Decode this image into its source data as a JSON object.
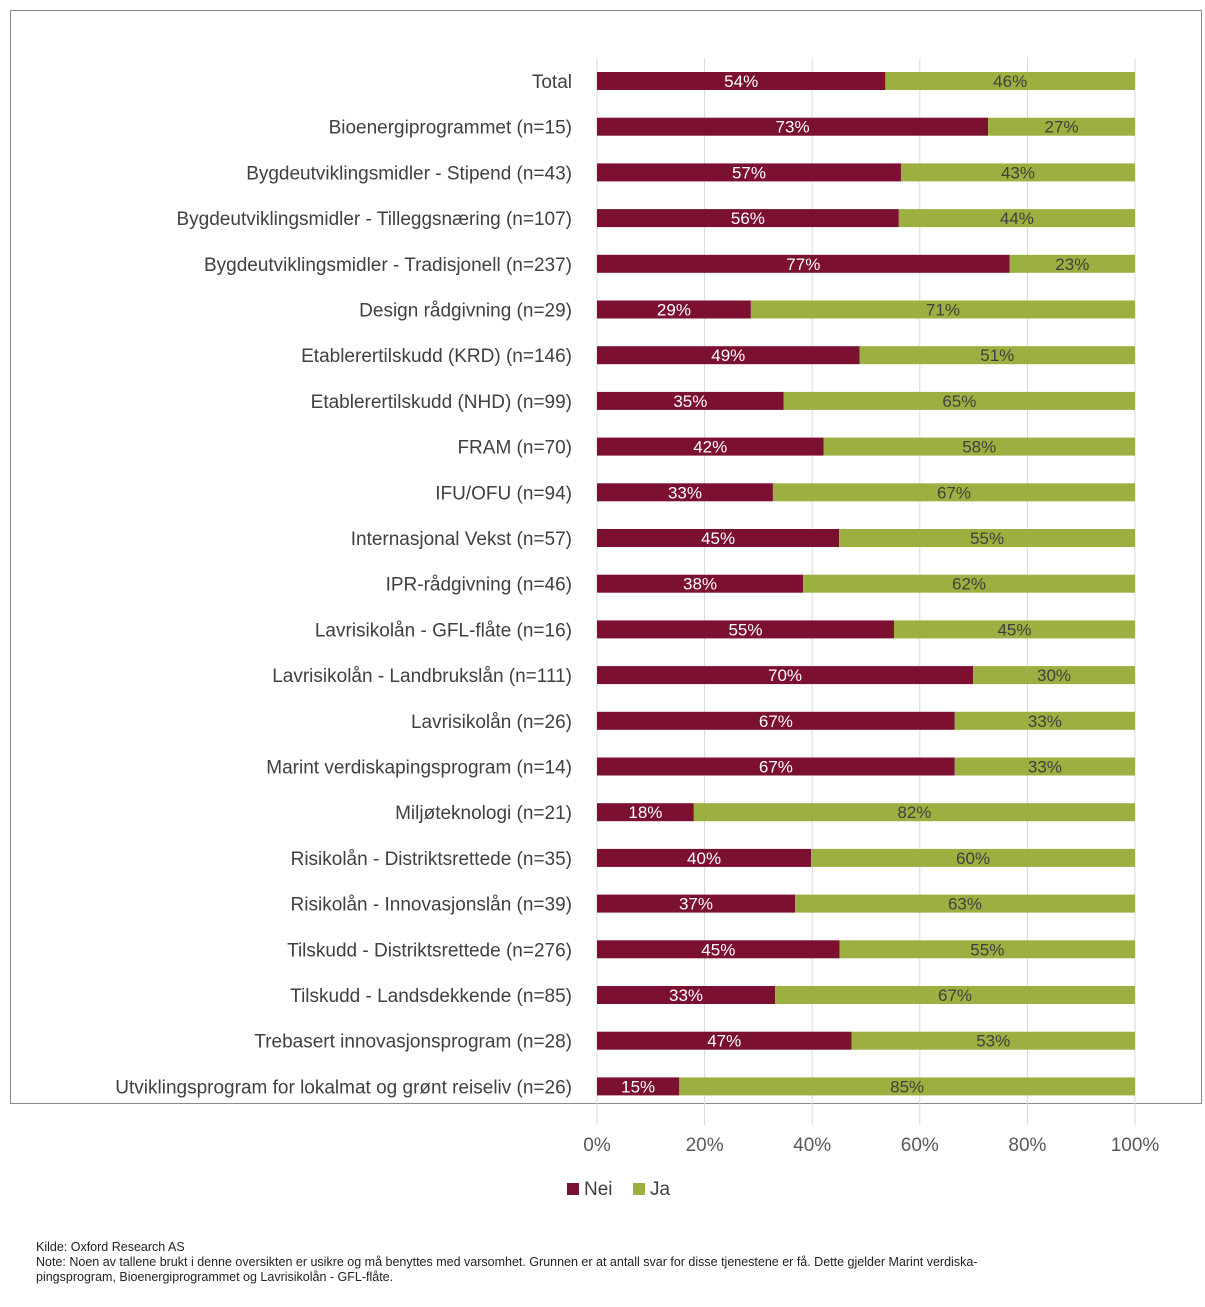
{
  "chart_data": {
    "type": "bar",
    "orientation": "horizontal",
    "stacked": "100%",
    "categories": [
      "Total",
      "Bioenergiprogrammet (n=15)",
      "Bygdeutviklingsmidler - Stipend (n=43)",
      "Bygdeutviklingsmidler - Tilleggsnæring (n=107)",
      "Bygdeutviklingsmidler - Tradisjonell (n=237)",
      "Design rådgivning (n=29)",
      "Etablerertilskudd (KRD) (n=146)",
      "Etablerertilskudd (NHD) (n=99)",
      "FRAM (n=70)",
      "IFU/OFU (n=94)",
      "Internasjonal Vekst (n=57)",
      "IPR-rådgivning (n=46)",
      "Lavrisikolån - GFL-flåte (n=16)",
      "Lavrisikolån - Landbrukslån (n=111)",
      "Lavrisikolån (n=26)",
      "Marint verdiskapingsprogram (n=14)",
      "Miljøteknologi (n=21)",
      "Risikolån - Distriktsrettede (n=35)",
      "Risikolån - Innovasjonslån (n=39)",
      "Tilskudd - Distriktsrettede (n=276)",
      "Tilskudd - Landsdekkende (n=85)",
      "Trebasert innovasjonsprogram (n=28)",
      "Utviklingsprogram for lokalmat og grønt reiseliv (n=26)"
    ],
    "series": [
      {
        "name": "Nei",
        "color": "#7b1030",
        "values": [
          53.6,
          72.7,
          56.5,
          56.1,
          76.7,
          28.6,
          48.8,
          34.7,
          42.1,
          32.7,
          45.0,
          38.3,
          55.2,
          69.9,
          66.5,
          66.5,
          18.0,
          39.8,
          36.8,
          45.1,
          33.1,
          47.3,
          15.3
        ],
        "labels": [
          "54%",
          "73%",
          "57%",
          "56%",
          "77%",
          "29%",
          "49%",
          "35%",
          "42%",
          "33%",
          "45%",
          "38%",
          "55%",
          "70%",
          "67%",
          "67%",
          "18%",
          "40%",
          "37%",
          "45%",
          "33%",
          "47%",
          "15%"
        ]
      },
      {
        "name": "Ja",
        "color": "#9bb040",
        "values": [
          46.4,
          27.3,
          43.5,
          43.9,
          23.3,
          71.4,
          51.2,
          65.3,
          57.9,
          67.3,
          55.0,
          61.7,
          44.8,
          30.1,
          33.5,
          33.5,
          82.0,
          60.2,
          63.2,
          54.9,
          66.9,
          52.7,
          84.7
        ],
        "labels": [
          "46%",
          "27%",
          "43%",
          "44%",
          "23%",
          "71%",
          "51%",
          "65%",
          "58%",
          "67%",
          "55%",
          "62%",
          "45%",
          "30%",
          "33%",
          "33%",
          "82%",
          "60%",
          "63%",
          "55%",
          "67%",
          "53%",
          "85%"
        ]
      }
    ],
    "xlim": [
      0,
      100
    ],
    "x_ticks": [
      "0%",
      "20%",
      "40%",
      "60%",
      "80%",
      "100%"
    ],
    "grid": true,
    "legend_position": "bottom"
  },
  "notes": {
    "source": "Kilde: Oxford Research AS",
    "note_line1": "Note: Noen av tallene brukt i denne oversikten er usikre og må benyttes med varsomhet. Grunnen er at antall svar for disse tjenestene er få. Dette gjelder Marint verdiska-",
    "note_line2": "pingsprogram, Bioenergiprogrammet og Lavrisikolån - GFL-flåte."
  }
}
